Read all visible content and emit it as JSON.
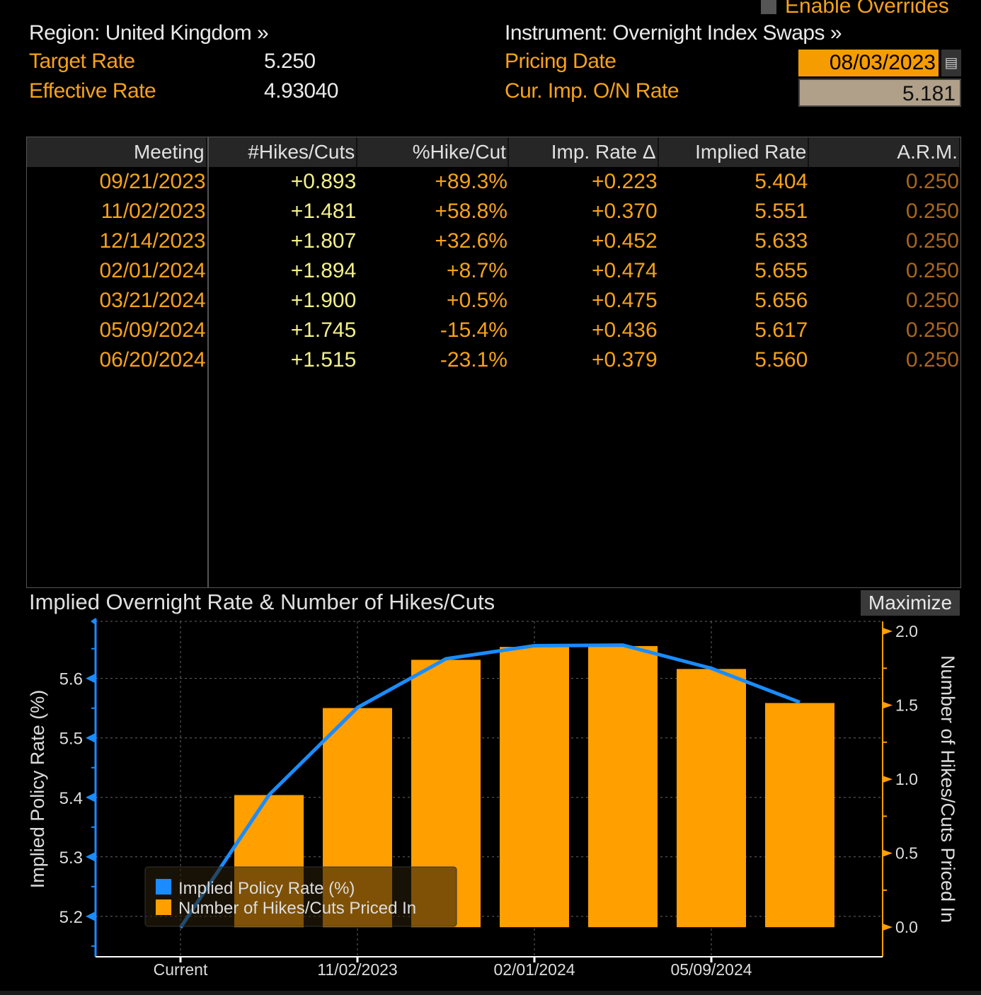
{
  "header": {
    "enable_overrides": "Enable Overrides",
    "region": "Region: United Kingdom »",
    "instrument": "Instrument: Overnight Index Swaps »",
    "target_rate_label": "Target Rate",
    "target_rate": "5.250",
    "effective_rate_label": "Effective Rate",
    "effective_rate": "4.93040",
    "pricing_date_label": "Pricing Date",
    "pricing_date": "08/03/2023",
    "cur_imp_label": "Cur. Imp. O/N Rate",
    "cur_imp": "5.181"
  },
  "table": {
    "columns": [
      "Meeting",
      "#Hikes/Cuts",
      "%Hike/Cut",
      "Imp. Rate Δ",
      "Implied Rate",
      "A.R.M."
    ],
    "rows": [
      [
        "09/21/2023",
        "+0.893",
        "+89.3%",
        "+0.223",
        "5.404",
        "0.250"
      ],
      [
        "11/02/2023",
        "+1.481",
        "+58.8%",
        "+0.370",
        "5.551",
        "0.250"
      ],
      [
        "12/14/2023",
        "+1.807",
        "+32.6%",
        "+0.452",
        "5.633",
        "0.250"
      ],
      [
        "02/01/2024",
        "+1.894",
        "+8.7%",
        "+0.474",
        "5.655",
        "0.250"
      ],
      [
        "03/21/2024",
        "+1.900",
        "+0.5%",
        "+0.475",
        "5.656",
        "0.250"
      ],
      [
        "05/09/2024",
        "+1.745",
        "-15.4%",
        "+0.436",
        "5.617",
        "0.250"
      ],
      [
        "06/20/2024",
        "+1.515",
        "-23.1%",
        "+0.379",
        "5.560",
        "0.250"
      ]
    ]
  },
  "maximize_label": "Maximize",
  "chart_data": {
    "type": "bar",
    "title": "Implied Overnight Rate & Number of Hikes/Cuts",
    "x": [
      "Current",
      "09/21/2023",
      "11/02/2023",
      "12/14/2023",
      "02/01/2024",
      "03/21/2024",
      "05/09/2024",
      "06/20/2024"
    ],
    "x_tick_labels": [
      "Current",
      "11/02/2023",
      "02/01/2024",
      "05/09/2024"
    ],
    "series": [
      {
        "name": "Implied Policy Rate (%)",
        "type": "line",
        "axis": "left",
        "color": "#1a8cff",
        "values": [
          5.181,
          5.404,
          5.551,
          5.633,
          5.655,
          5.656,
          5.617,
          5.56
        ]
      },
      {
        "name": "Number of Hikes/Cuts Priced In",
        "type": "bar",
        "axis": "right",
        "color": "#ff9f00",
        "values": [
          null,
          0.893,
          1.481,
          1.807,
          1.894,
          1.9,
          1.745,
          1.515
        ]
      }
    ],
    "ylabel": "Implied Policy Rate (%)",
    "y2label": "Number of Hikes/Cuts Priced In",
    "ylim": [
      5.132,
      5.696
    ],
    "y2lim": [
      -0.2,
      2.067
    ],
    "yticks": [
      "5.2",
      "5.3",
      "5.4",
      "5.5",
      "5.6"
    ],
    "y2ticks": [
      "0.0",
      "0.5",
      "1.0",
      "1.5",
      "2.0"
    ],
    "grid": true,
    "legend": "bottom-left"
  }
}
